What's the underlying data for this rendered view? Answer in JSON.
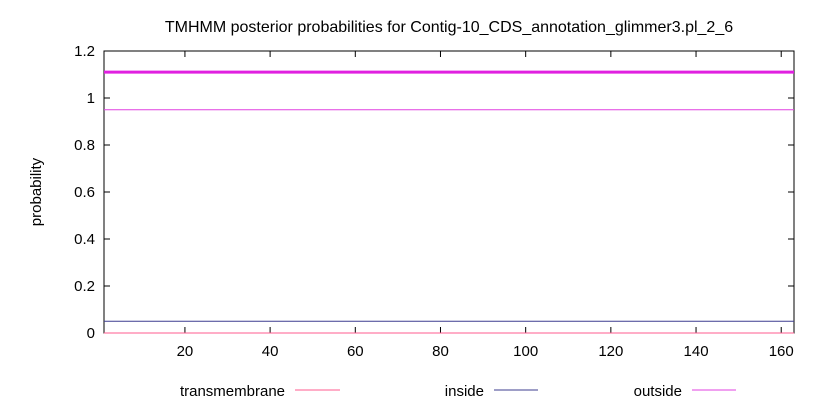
{
  "chart_data": {
    "type": "line",
    "title": "TMHMM posterior probabilities for Contig-10_CDS_annotation_glimmer3.pl_2_6",
    "xlabel": "",
    "ylabel": "probability",
    "xlim": [
      1,
      163
    ],
    "ylim": [
      0,
      1.2
    ],
    "x_ticks": [
      20,
      40,
      60,
      80,
      100,
      120,
      140,
      160
    ],
    "y_ticks": [
      0,
      0.2,
      0.4,
      0.6,
      0.8,
      1,
      1.2
    ],
    "y_tick_labels": [
      "0",
      "0.2",
      "0.4",
      "0.6",
      "0.8",
      "1",
      "1.2"
    ],
    "grid": false,
    "legend_position": "bottom",
    "series": [
      {
        "name": "transmembrane",
        "color": "#ff5b8f",
        "x": [
          1,
          163
        ],
        "values": [
          0,
          0
        ]
      },
      {
        "name": "inside",
        "color": "#3d3d8f",
        "x": [
          1,
          163
        ],
        "values": [
          0.05,
          0.05
        ]
      },
      {
        "name": "outside",
        "color": "#e040e0",
        "x": [
          1,
          163
        ],
        "values": [
          0.95,
          0.95
        ]
      }
    ],
    "reference_lines": [
      {
        "y": 1.11,
        "color": "#e020e0"
      }
    ]
  }
}
